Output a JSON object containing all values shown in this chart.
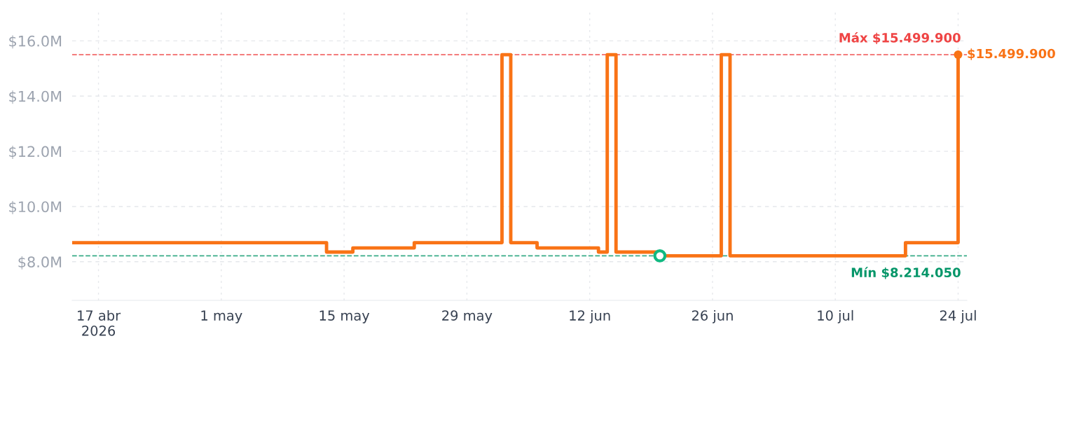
{
  "chart_data": {
    "type": "step",
    "x": [
      "2026-04-14",
      "2026-05-13",
      "2026-05-16",
      "2026-05-23",
      "2026-06-02",
      "2026-06-03",
      "2026-06-06",
      "2026-06-13",
      "2026-06-14",
      "2026-06-15",
      "2026-06-20",
      "2026-06-27",
      "2026-06-28",
      "2026-07-18",
      "2026-07-24"
    ],
    "series": [
      {
        "color": "#f97316",
        "values": [
          8690000,
          8350000,
          8500000,
          8690000,
          15499900,
          8690000,
          8500000,
          8350000,
          15499900,
          8350000,
          8214050,
          15499900,
          8214050,
          8690000,
          15499900
        ]
      },
      {
        "type": "scatter",
        "color": "#10b981",
        "marker": "circle",
        "x": [
          "2026-06-20"
        ],
        "values": [
          8214050
        ]
      },
      {
        "type": "scatter",
        "color": "#f97316",
        "marker": "circle",
        "x": [
          "2026-07-24"
        ],
        "values": [
          15499900
        ],
        "value_labels": [
          "$15.499.900"
        ]
      }
    ],
    "xlim": [
      "2026-04-14",
      "2026-07-25"
    ],
    "xticks": [
      {
        "value": "2026-04-17",
        "label": "17 abr\n2026"
      },
      {
        "value": "2026-05-01",
        "label": "1 may"
      },
      {
        "value": "2026-05-15",
        "label": "15 may"
      },
      {
        "value": "2026-05-29",
        "label": "29 may"
      },
      {
        "value": "2026-06-12",
        "label": "12 jun"
      },
      {
        "value": "2026-06-26",
        "label": "26 jun"
      },
      {
        "value": "2026-07-10",
        "label": "10 jul"
      },
      {
        "value": "2026-07-24",
        "label": "24 jul"
      }
    ],
    "ylim": [
      6600000,
      17100000
    ],
    "yticks": [
      {
        "value": 8000000,
        "label": "$8.0M"
      },
      {
        "value": 10000000,
        "label": "$10.0M"
      },
      {
        "value": 12000000,
        "label": "$12.0M"
      },
      {
        "value": 14000000,
        "label": "$14.0M"
      },
      {
        "value": 16000000,
        "label": "$16.0M"
      }
    ],
    "ref_lines": [
      {
        "axis": "y",
        "value": 15499900,
        "label": "Máx $15.499.900",
        "color": "#ef4444",
        "line_style": "dashed"
      },
      {
        "axis": "y",
        "value": 8214050,
        "label": "Mín $8.214.050",
        "color": "#059669",
        "line_style": "dashed"
      }
    ],
    "grid": true,
    "line_style": "solid"
  }
}
